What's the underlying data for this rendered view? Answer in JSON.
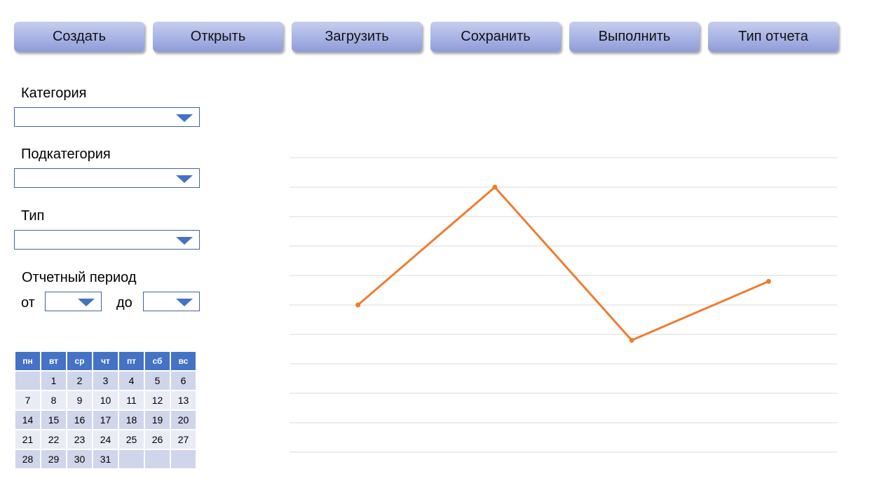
{
  "toolbar": {
    "buttons": [
      "Создать",
      "Открыть",
      "Загрузить",
      "Сохранить",
      "Выполнить",
      "Тип отчета"
    ]
  },
  "filters": {
    "category_label": "Категория",
    "category_value": "",
    "subcategory_label": "Подкатегория",
    "subcategory_value": "",
    "type_label": "Тип",
    "type_value": "",
    "period_label": "Отчетный период",
    "from_label": "от",
    "from_value": "",
    "to_label": "до",
    "to_value": ""
  },
  "calendar": {
    "weekdays": [
      "пн",
      "вт",
      "ср",
      "чт",
      "пт",
      "сб",
      "вс"
    ],
    "weeks": [
      [
        "",
        "1",
        "2",
        "3",
        "4",
        "5",
        "6"
      ],
      [
        "7",
        "8",
        "9",
        "10",
        "11",
        "12",
        "13"
      ],
      [
        "14",
        "15",
        "16",
        "17",
        "18",
        "19",
        "20"
      ],
      [
        "21",
        "22",
        "23",
        "24",
        "25",
        "26",
        "27"
      ],
      [
        "28",
        "29",
        "30",
        "31",
        "",
        "",
        ""
      ]
    ]
  },
  "colors": {
    "accent": "#4472c4",
    "line": "#ed7d31",
    "grid": "#d9d9d9"
  },
  "chart_data": {
    "type": "line",
    "x": [
      1,
      2,
      3,
      4
    ],
    "values": [
      5,
      9,
      3.8,
      5.8
    ],
    "ylim": [
      0,
      10
    ],
    "grid": true,
    "gridlines": 11
  }
}
